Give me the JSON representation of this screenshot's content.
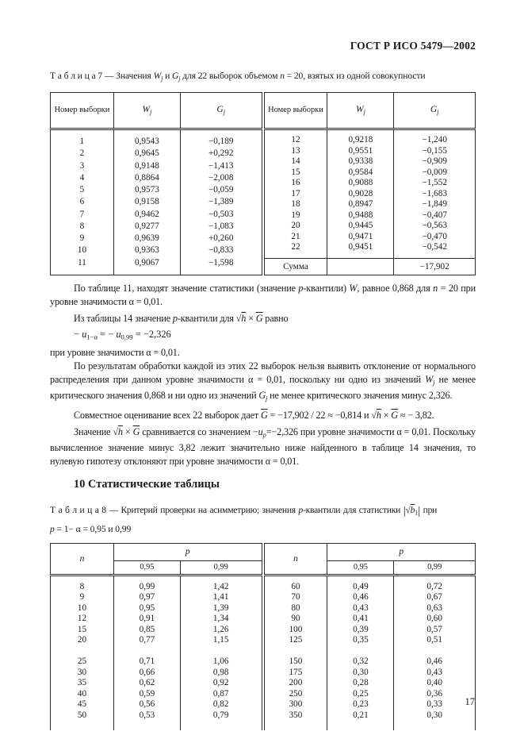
{
  "page": {
    "header": "ГОСТ Р ИСО 5479—2002",
    "page_number": "17"
  },
  "table7": {
    "caption": [
      [
        "n",
        "Т а б л и ц а   7  — Значения "
      ],
      [
        "i",
        "W"
      ],
      [
        "isub",
        "j"
      ],
      [
        "n",
        " и "
      ],
      [
        "i",
        "G"
      ],
      [
        "isub",
        "j"
      ],
      [
        "n",
        "  для 22 выборок объемом "
      ],
      [
        "i",
        "n"
      ],
      [
        "n",
        " = 20, взятых из одной совокупности"
      ]
    ],
    "headers": {
      "num": "Номер выборки",
      "w": [
        [
          "i",
          "W"
        ],
        [
          "isub",
          "j"
        ]
      ],
      "g": [
        [
          "i",
          "G"
        ],
        [
          "isub",
          "j"
        ]
      ]
    },
    "left": {
      "rows": [
        [
          "1",
          "0,9543",
          "−0,189"
        ],
        [
          "2",
          "0,9645",
          "+0,292"
        ],
        [
          "3",
          "0,9148",
          "−1,413"
        ],
        [
          "4",
          "0,8864",
          "−2,008"
        ],
        [
          "5",
          "0,9573",
          "−0,059"
        ],
        [
          "6",
          "0,9158",
          "−1,389"
        ],
        [
          "7",
          "0,9462",
          "−0,503"
        ],
        [
          "8",
          "0,9277",
          "−1,083"
        ],
        [
          "9",
          "0,9639",
          "+0,260"
        ],
        [
          "10",
          "0,9363",
          "−0,833"
        ],
        [
          "11",
          "0,9067",
          "−1,598"
        ]
      ]
    },
    "right": {
      "rows": [
        [
          "12",
          "0,9218",
          "−1,240"
        ],
        [
          "13",
          "0,9551",
          "−0,155"
        ],
        [
          "14",
          "0,9338",
          "−0,909"
        ],
        [
          "15",
          "0,9584",
          "−0,009"
        ],
        [
          "16",
          "0,9088",
          "−1,552"
        ],
        [
          "17",
          "0,9028",
          "−1,683"
        ],
        [
          "18",
          "0,8947",
          "−1,849"
        ],
        [
          "19",
          "0,9488",
          "−0,407"
        ],
        [
          "20",
          "0,9445",
          "−0,563"
        ],
        [
          "21",
          "0,9471",
          "−0,470"
        ],
        [
          "22",
          "0,9451",
          "−0,542"
        ]
      ]
    },
    "sum": {
      "label": "Сумма",
      "value": "−17,902"
    }
  },
  "paragraphs": {
    "p1": [
      [
        "n",
        "По таблице 11, находят значение статистики (значение "
      ],
      [
        "i",
        "p"
      ],
      [
        "n",
        "-квантили) "
      ],
      [
        "i",
        "W"
      ],
      [
        "n",
        ", равное 0,868  для "
      ],
      [
        "i",
        "n"
      ],
      [
        "n",
        " = 20 при уровне значимости α = 0,01."
      ]
    ],
    "p2_intro": [
      [
        "n",
        "Из таблицы 14 значение  "
      ],
      [
        "i",
        "p"
      ],
      [
        "n",
        "-квантили для "
      ],
      [
        "sq",
        "√"
      ],
      [
        "iov",
        "h"
      ],
      [
        "n",
        " × "
      ],
      [
        "iov",
        "G"
      ],
      [
        "n",
        "  равно"
      ]
    ],
    "p2_formula": [
      [
        "n",
        "− "
      ],
      [
        "i",
        "u"
      ],
      [
        "sub",
        "1−α"
      ],
      [
        "n",
        " = − "
      ],
      [
        "i",
        "u"
      ],
      [
        "sub",
        "0,99"
      ],
      [
        "n",
        " = −2,326"
      ]
    ],
    "p2_tail": "при уровне значимости α = 0,01.",
    "p3": [
      [
        "n",
        "По результатам обработки каждой из этих 22 выборок нельзя выявить отклонение от нормального распределения при данном уровне значимости α = 0,01, поскольку ни одно из значений "
      ],
      [
        "i",
        "W"
      ],
      [
        "isub",
        "j"
      ],
      [
        "n",
        "  не менее критического значения 0,868 и ни одно из значений "
      ],
      [
        "i",
        "G"
      ],
      [
        "isub",
        "j"
      ],
      [
        "n",
        "  не менее критического значения минус 2,326."
      ]
    ],
    "p4": [
      [
        "n",
        "Совместное оценивание всех 22 выборок дает "
      ],
      [
        "iov",
        "G"
      ],
      [
        "n",
        "  =  −17,902 / 22 ≈ −0,814  и  "
      ],
      [
        "sq",
        "√"
      ],
      [
        "iov",
        "h"
      ],
      [
        "n",
        " × "
      ],
      [
        "iov",
        "G"
      ],
      [
        "n",
        "  ≈ − 3,82."
      ]
    ],
    "p5": [
      [
        "n",
        "Значение  "
      ],
      [
        "sq",
        "√"
      ],
      [
        "iov",
        "h"
      ],
      [
        "n",
        " × "
      ],
      [
        "iov",
        "G"
      ],
      [
        "n",
        "  сравнивается со значением −"
      ],
      [
        "i",
        "u"
      ],
      [
        "isub",
        "p"
      ],
      [
        "n",
        "=−2,326 при уровне значимости α = 0,01. Поскольку вычисленное значение минус 3,82 лежит значительно ниже найденного в таблице 14 значения, то нулевую гипотезу отклоняют при уровне значимости α = 0,01."
      ]
    ]
  },
  "section10": {
    "title": "10 Статистические таблицы"
  },
  "table8": {
    "caption_line1": [
      [
        "n",
        "Т а б л и ц а   8 — Критерий проверки на асимметрию; значения "
      ],
      [
        "i",
        "p"
      ],
      [
        "n",
        "-квантили для статистики "
      ],
      [
        "abs",
        "|"
      ],
      [
        "sq",
        "√"
      ],
      [
        "iov",
        "b"
      ],
      [
        "sub",
        "1"
      ],
      [
        "abs",
        "|"
      ],
      [
        "n",
        " при"
      ]
    ],
    "caption_line2": [
      [
        "i",
        "p"
      ],
      [
        "n",
        " = 1− α = 0,95 и 0,99"
      ]
    ],
    "headers": {
      "n": [
        [
          "i",
          "n"
        ]
      ],
      "p": [
        [
          "i",
          "p"
        ]
      ],
      "q95": "0,95",
      "q99": "0,99"
    },
    "left": {
      "rows": [
        [
          "8",
          "0,99",
          "1,42"
        ],
        [
          "9",
          "0,97",
          "1,41"
        ],
        [
          "10",
          "0,95",
          "1,39"
        ],
        [
          "12",
          "0,91",
          "1,34"
        ],
        [
          "15",
          "0,85",
          "1,26"
        ],
        [
          "20",
          "0,77",
          "1,15"
        ],
        [
          "",
          "",
          ""
        ],
        [
          "25",
          "0,71",
          "1,06"
        ],
        [
          "30",
          "0,66",
          "0,98"
        ],
        [
          "35",
          "0,62",
          "0,92"
        ],
        [
          "40",
          "0,59",
          "0,87"
        ],
        [
          "45",
          "0,56",
          "0,82"
        ],
        [
          "50",
          "0,53",
          "0,79"
        ]
      ]
    },
    "right": {
      "rows": [
        [
          "60",
          "0,49",
          "0,72"
        ],
        [
          "70",
          "0,46",
          "0,67"
        ],
        [
          "80",
          "0,43",
          "0,63"
        ],
        [
          "90",
          "0,41",
          "0,60"
        ],
        [
          "100",
          "0,39",
          "0,57"
        ],
        [
          "125",
          "0,35",
          "0,51"
        ],
        [
          "",
          "",
          ""
        ],
        [
          "150",
          "0,32",
          "0,46"
        ],
        [
          "175",
          "0,30",
          "0,43"
        ],
        [
          "200",
          "0,28",
          "0,40"
        ],
        [
          "250",
          "0,25",
          "0,36"
        ],
        [
          "300",
          "0,23",
          "0,33"
        ],
        [
          "350",
          "0,21",
          "0,30"
        ]
      ]
    }
  }
}
